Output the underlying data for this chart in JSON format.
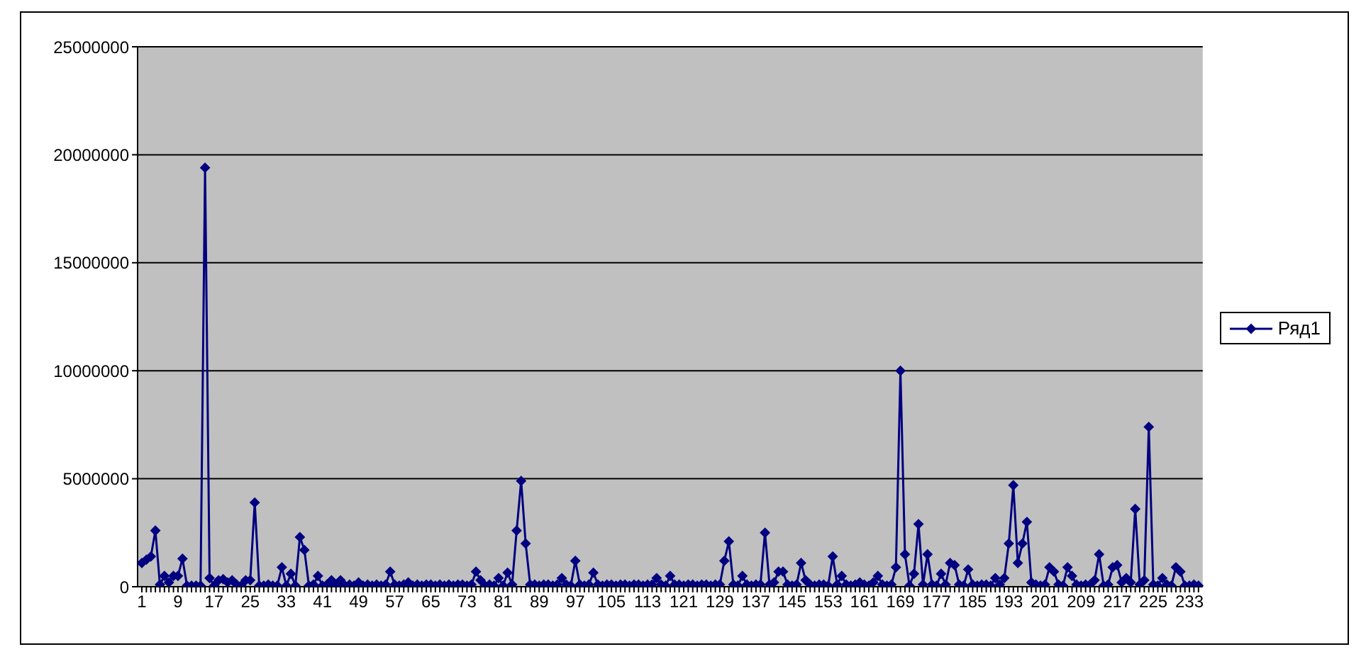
{
  "chart_data": {
    "type": "line",
    "categories": [
      "1",
      null,
      null,
      null,
      null,
      null,
      null,
      null,
      "9",
      null,
      null,
      null,
      null,
      null,
      null,
      null,
      "17",
      null,
      null,
      null,
      null,
      null,
      null,
      null,
      "25",
      null,
      null,
      null,
      null,
      null,
      null,
      null,
      "33",
      null,
      null,
      null,
      null,
      null,
      null,
      null,
      "41",
      null,
      null,
      null,
      null,
      null,
      null,
      null,
      "49",
      null,
      null,
      null,
      null,
      null,
      null,
      null,
      "57",
      null,
      null,
      null,
      null,
      null,
      null,
      null,
      "65",
      null,
      null,
      null,
      null,
      null,
      null,
      null,
      "73",
      null,
      null,
      null,
      null,
      null,
      null,
      null,
      "81",
      null,
      null,
      null,
      null,
      null,
      null,
      null,
      "89",
      null,
      null,
      null,
      null,
      null,
      null,
      null,
      "97",
      null,
      null,
      null,
      null,
      null,
      null,
      null,
      "105",
      null,
      null,
      null,
      null,
      null,
      null,
      null,
      "113",
      null,
      null,
      null,
      null,
      null,
      null,
      null,
      "121",
      null,
      null,
      null,
      null,
      null,
      null,
      null,
      "129",
      null,
      null,
      null,
      null,
      null,
      null,
      null,
      "137",
      null,
      null,
      null,
      null,
      null,
      null,
      null,
      "145",
      null,
      null,
      null,
      null,
      null,
      null,
      null,
      "153",
      null,
      null,
      null,
      null,
      null,
      null,
      null,
      "161",
      null,
      null,
      null,
      null,
      null,
      null,
      null,
      "169",
      null,
      null,
      null,
      null,
      null,
      null,
      null,
      "177",
      null,
      null,
      null,
      null,
      null,
      null,
      null,
      "185",
      null,
      null,
      null,
      null,
      null,
      null,
      null,
      "193",
      null,
      null,
      null,
      null,
      null,
      null,
      null,
      "201",
      null,
      null,
      null,
      null,
      null,
      null,
      null,
      "209",
      null,
      null,
      null,
      null,
      null,
      null,
      null,
      "217",
      null,
      null,
      null,
      null,
      null,
      null,
      null,
      "225",
      null,
      null,
      null,
      null,
      null,
      null,
      null,
      "233",
      null,
      null
    ],
    "series": [
      {
        "name": "Ряд1",
        "color": "#000080",
        "values": [
          1100000,
          1250000,
          1400000,
          2600000,
          100000,
          500000,
          200000,
          500000,
          500000,
          1300000,
          50000,
          50000,
          50000,
          50000,
          19400000,
          400000,
          50000,
          300000,
          350000,
          200000,
          300000,
          100000,
          50000,
          300000,
          300000,
          3900000,
          50000,
          50000,
          100000,
          50000,
          50000,
          900000,
          50000,
          600000,
          50000,
          2300000,
          1700000,
          50000,
          100000,
          500000,
          50000,
          100000,
          300000,
          50000,
          300000,
          50000,
          100000,
          50000,
          200000,
          50000,
          100000,
          50000,
          100000,
          50000,
          100000,
          700000,
          100000,
          50000,
          100000,
          200000,
          50000,
          100000,
          50000,
          100000,
          100000,
          50000,
          100000,
          50000,
          100000,
          50000,
          100000,
          100000,
          50000,
          100000,
          700000,
          300000,
          50000,
          100000,
          50000,
          400000,
          50000,
          650000,
          100000,
          2600000,
          4900000,
          2000000,
          100000,
          100000,
          50000,
          100000,
          100000,
          50000,
          100000,
          400000,
          100000,
          50000,
          1200000,
          100000,
          50000,
          100000,
          650000,
          100000,
          50000,
          100000,
          100000,
          50000,
          100000,
          100000,
          50000,
          100000,
          100000,
          50000,
          100000,
          100000,
          400000,
          100000,
          50000,
          500000,
          100000,
          100000,
          50000,
          100000,
          100000,
          50000,
          100000,
          100000,
          50000,
          100000,
          100000,
          1200000,
          2100000,
          100000,
          50000,
          500000,
          100000,
          50000,
          100000,
          100000,
          2500000,
          100000,
          200000,
          700000,
          700000,
          100000,
          50000,
          100000,
          1100000,
          300000,
          100000,
          50000,
          100000,
          100000,
          50000,
          1400000,
          100000,
          500000,
          100000,
          50000,
          100000,
          200000,
          100000,
          50000,
          200000,
          500000,
          100000,
          50000,
          100000,
          900000,
          10000000,
          1500000,
          50000,
          600000,
          2900000,
          100000,
          1500000,
          100000,
          50000,
          600000,
          100000,
          1100000,
          1000000,
          100000,
          50000,
          800000,
          100000,
          50000,
          100000,
          100000,
          50000,
          400000,
          100000,
          400000,
          2000000,
          4700000,
          1100000,
          2000000,
          3000000,
          200000,
          100000,
          50000,
          100000,
          900000,
          700000,
          100000,
          50000,
          900000,
          500000,
          100000,
          50000,
          100000,
          100000,
          300000,
          1500000,
          50000,
          100000,
          900000,
          1000000,
          200000,
          400000,
          200000,
          3600000,
          100000,
          300000,
          7400000,
          100000,
          50000,
          400000,
          100000,
          50000,
          900000,
          700000,
          50000,
          50000,
          100000,
          50000
        ]
      }
    ],
    "ylim": [
      0,
      25000000
    ],
    "yticks": [
      0,
      5000000,
      10000000,
      15000000,
      20000000,
      25000000
    ],
    "grid": "y",
    "legend": "right",
    "marker": "diamond",
    "line_style": "solid"
  }
}
